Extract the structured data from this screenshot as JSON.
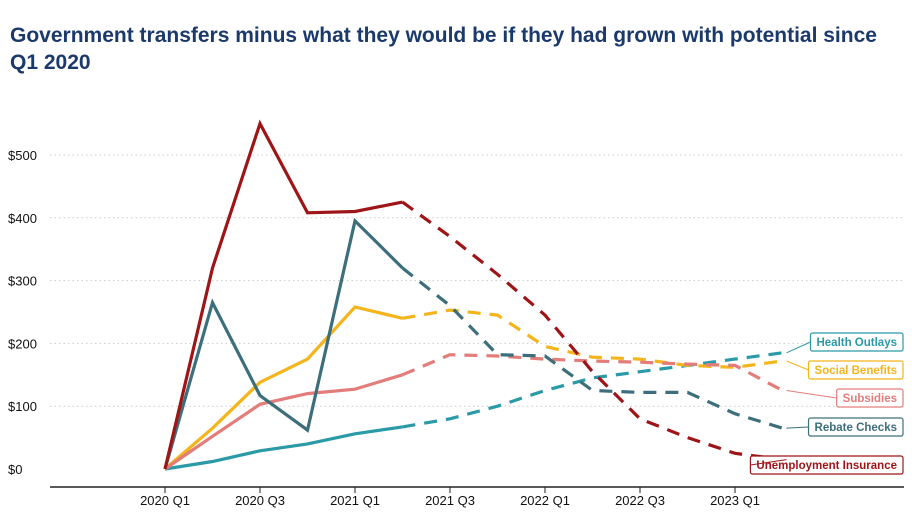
{
  "title": "Government transfers minus what they would be if they had grown with potential since Q1 2020",
  "chart_data": {
    "type": "line",
    "title": "Government transfers minus what they would be if they had grown with potential since Q1 2020",
    "xlabel": "",
    "ylabel": "",
    "x": [
      "2020 Q1",
      "2020 Q2",
      "2020 Q3",
      "2020 Q4",
      "2021 Q1",
      "2021 Q2",
      "2021 Q3",
      "2021 Q4",
      "2022 Q1",
      "2022 Q2",
      "2022 Q3",
      "2022 Q4",
      "2023 Q1",
      "2023 Q2"
    ],
    "x_tick_labels": [
      "2020 Q1",
      "2020 Q3",
      "2021 Q1",
      "2021 Q3",
      "2022 Q1",
      "2022 Q3",
      "2023 Q1"
    ],
    "y_tick_labels": [
      "$0",
      "$100",
      "$200",
      "$300",
      "$400",
      "$500"
    ],
    "ylim": [
      0,
      550
    ],
    "actual_through": "2021 Q2",
    "projected_style": "dashed",
    "grid": "horizontal dotted",
    "series": [
      {
        "name": "Health Outlays",
        "color": "#2a9aa7",
        "values": [
          0,
          12,
          29,
          40,
          56,
          67,
          80,
          100,
          125,
          145,
          155,
          165,
          175,
          185
        ]
      },
      {
        "name": "Social Benefits",
        "color": "#f3b51b",
        "values": [
          0,
          65,
          138,
          175,
          258,
          240,
          253,
          245,
          195,
          178,
          175,
          165,
          162,
          172
        ]
      },
      {
        "name": "Subsidies",
        "color": "#e27d7a",
        "values": [
          0,
          52,
          103,
          120,
          127,
          150,
          182,
          180,
          175,
          172,
          170,
          167,
          165,
          125
        ]
      },
      {
        "name": "Rebate Checks",
        "color": "#3d6e7b",
        "values": [
          0,
          265,
          117,
          62,
          395,
          320,
          260,
          182,
          180,
          125,
          122,
          122,
          88,
          65
        ]
      },
      {
        "name": "Unemployment Insurance",
        "color": "#9e1518",
        "values": [
          0,
          320,
          550,
          408,
          410,
          425,
          370,
          310,
          245,
          155,
          80,
          50,
          25,
          15
        ]
      }
    ]
  }
}
